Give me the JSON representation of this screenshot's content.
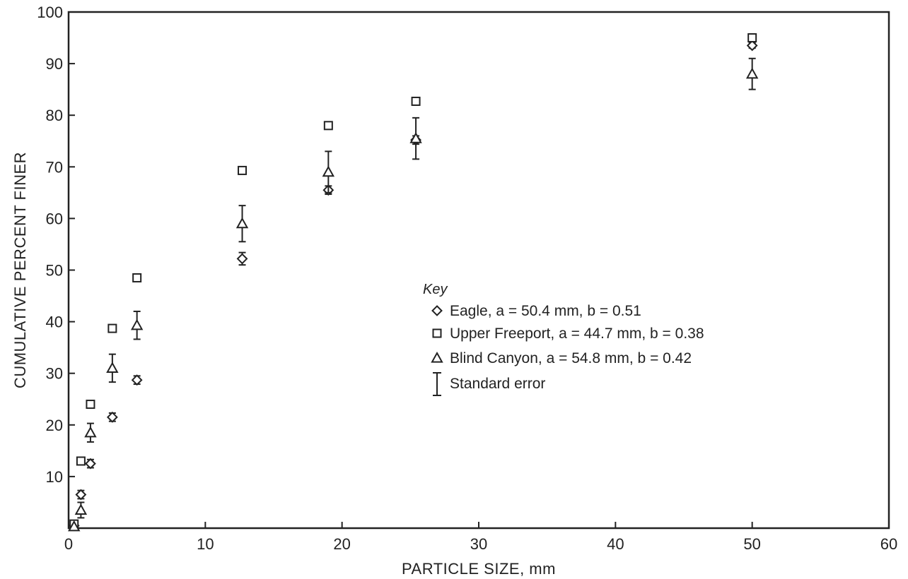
{
  "chart_data": {
    "type": "scatter",
    "xlabel": "PARTICLE SIZE, mm",
    "ylabel": "CUMULATIVE PERCENT FINER",
    "xlim": [
      0,
      60
    ],
    "ylim": [
      0,
      100
    ],
    "xticks": [
      0,
      10,
      20,
      30,
      40,
      50,
      60
    ],
    "yticks": [
      10,
      20,
      30,
      40,
      50,
      60,
      70,
      80,
      90,
      100
    ],
    "grid": false,
    "legend_title": "Key",
    "legend_position": "center-right",
    "series": [
      {
        "name": "Eagle, a = 50.4 mm, b = 0.51",
        "marker": "diamond",
        "points": [
          {
            "x": 0.4,
            "y": 0.5,
            "err": 0
          },
          {
            "x": 0.9,
            "y": 6.5,
            "err": 0.8
          },
          {
            "x": 1.6,
            "y": 12.5,
            "err": 0.8
          },
          {
            "x": 3.2,
            "y": 21.5,
            "err": 0.8
          },
          {
            "x": 5.0,
            "y": 28.7,
            "err": 0.8
          },
          {
            "x": 12.7,
            "y": 52.2,
            "err": 1.2
          },
          {
            "x": 19.0,
            "y": 65.5,
            "err": 0.8
          },
          {
            "x": 25.4,
            "y": 75.2,
            "err": 0.8
          },
          {
            "x": 50.0,
            "y": 93.5,
            "err": 0.5
          }
        ]
      },
      {
        "name": "Upper Freeport, a = 44.7 mm, b = 0.38",
        "marker": "square",
        "points": [
          {
            "x": 0.4,
            "y": 0.8,
            "err": 0
          },
          {
            "x": 0.9,
            "y": 13.0,
            "err": 0
          },
          {
            "x": 1.6,
            "y": 24.0,
            "err": 0
          },
          {
            "x": 3.2,
            "y": 38.7,
            "err": 0
          },
          {
            "x": 5.0,
            "y": 48.5,
            "err": 0
          },
          {
            "x": 12.7,
            "y": 69.3,
            "err": 0
          },
          {
            "x": 19.0,
            "y": 78.0,
            "err": 0
          },
          {
            "x": 25.4,
            "y": 82.7,
            "err": 0
          },
          {
            "x": 50.0,
            "y": 95.0,
            "err": 0
          }
        ]
      },
      {
        "name": "Blind Canyon, a = 54.8 mm, b = 0.42",
        "marker": "triangle",
        "points": [
          {
            "x": 0.4,
            "y": 0.3,
            "err": 0
          },
          {
            "x": 0.9,
            "y": 3.5,
            "err": 1.5
          },
          {
            "x": 1.6,
            "y": 18.5,
            "err": 1.8
          },
          {
            "x": 3.2,
            "y": 31.0,
            "err": 2.7
          },
          {
            "x": 5.0,
            "y": 39.3,
            "err": 2.7
          },
          {
            "x": 12.7,
            "y": 59.0,
            "err": 3.5
          },
          {
            "x": 19.0,
            "y": 69.0,
            "err": 4.0
          },
          {
            "x": 25.4,
            "y": 75.5,
            "err": 4.0
          },
          {
            "x": 50.0,
            "y": 88.0,
            "err": 3.0
          }
        ]
      }
    ],
    "error_bar_label": "Standard error"
  }
}
